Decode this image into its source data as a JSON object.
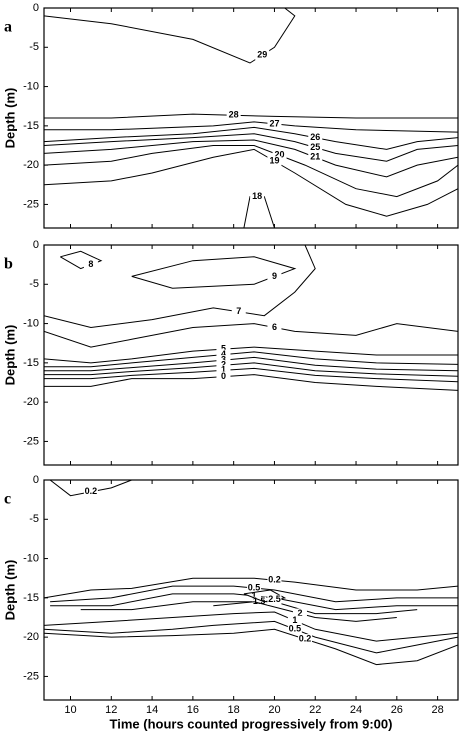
{
  "chart_data": [
    {
      "type": "contour",
      "panel_label": "a",
      "ylabel": "Depth (m)",
      "xlim": [
        8.7,
        29.0
      ],
      "ylim": [
        -28,
        0
      ],
      "xticks": [
        10,
        12,
        14,
        16,
        18,
        20,
        22,
        24,
        26,
        28
      ],
      "yticks": [
        0,
        -5,
        -10,
        -15,
        -20,
        -25
      ],
      "contours": [
        {
          "level": 29,
          "x": [
            8.7,
            12,
            16,
            18.8,
            20,
            21,
            20.5
          ],
          "y": [
            -1,
            -2,
            -4,
            -7,
            -5,
            -1,
            0
          ]
        },
        {
          "level": 28,
          "x": [
            8.7,
            12,
            16,
            20,
            24,
            29
          ],
          "y": [
            -14,
            -14,
            -13.5,
            -13.8,
            -14,
            -14
          ]
        },
        {
          "level": 27,
          "x": [
            8.7,
            12,
            17,
            19,
            21,
            24,
            29
          ],
          "y": [
            -15.5,
            -15.5,
            -15,
            -14.5,
            -15,
            -15.5,
            -15.8
          ]
        },
        {
          "level": 26,
          "x": [
            8.7,
            12,
            16,
            19,
            21,
            23,
            25.5,
            27,
            29
          ],
          "y": [
            -17,
            -16.5,
            -16,
            -15.2,
            -16,
            -17,
            -18,
            -17,
            -16.5
          ]
        },
        {
          "level": 25,
          "x": [
            8.7,
            12,
            16,
            19,
            21,
            23,
            25.5,
            27,
            29
          ],
          "y": [
            -17.5,
            -17,
            -16.5,
            -16,
            -17,
            -18.5,
            -19.5,
            -18,
            -17.5
          ]
        },
        {
          "level": 21,
          "x": [
            8.7,
            12,
            16,
            19,
            21,
            23,
            25.5,
            27,
            29
          ],
          "y": [
            -18.5,
            -18,
            -17,
            -16.8,
            -18,
            -20,
            -21.5,
            -20,
            -19
          ]
        },
        {
          "level": 20,
          "x": [
            8.7,
            12,
            14,
            17,
            19,
            21.5,
            24,
            26,
            28,
            29
          ],
          "y": [
            -20,
            -19.5,
            -18.5,
            -17.5,
            -17.5,
            -20,
            -23,
            -24,
            -22,
            -20
          ]
        },
        {
          "level": 19,
          "x": [
            8.7,
            12,
            14,
            17,
            19,
            21,
            23.5,
            25.5,
            27.5,
            29
          ],
          "y": [
            -22.5,
            -22,
            -21,
            -19,
            -18,
            -21,
            -25,
            -26.5,
            -25,
            -23
          ]
        },
        {
          "level": 18,
          "x": [
            18.5,
            18.8,
            19.5,
            20
          ],
          "y": [
            -28,
            -24,
            -24,
            -28
          ]
        }
      ]
    },
    {
      "type": "contour",
      "panel_label": "b",
      "ylabel": "Depth (m)",
      "xlim": [
        8.7,
        29.0
      ],
      "ylim": [
        -28,
        0
      ],
      "xticks": [
        10,
        12,
        14,
        16,
        18,
        20,
        22,
        24,
        26,
        28
      ],
      "yticks": [
        0,
        -5,
        -10,
        -15,
        -20,
        -25
      ],
      "contours": [
        {
          "level": 8,
          "x": [
            9.5,
            10.5,
            11.5,
            10.5,
            9.5
          ],
          "y": [
            -1.5,
            -0.8,
            -2,
            -3,
            -1.5
          ]
        },
        {
          "level": 9,
          "x": [
            13,
            16,
            19,
            21,
            19,
            15,
            13
          ],
          "y": [
            -4,
            -2,
            -1.5,
            -3,
            -5,
            -5.5,
            -4
          ]
        },
        {
          "level": 7,
          "x": [
            8.7,
            11,
            14,
            17,
            19.5,
            21,
            22,
            21.5
          ],
          "y": [
            -9,
            -10.5,
            -9.5,
            -8,
            -9,
            -6,
            -3,
            0
          ]
        },
        {
          "level": 6,
          "x": [
            8.7,
            11,
            13,
            16,
            19,
            21,
            24,
            26,
            29
          ],
          "y": [
            -11,
            -13,
            -12,
            -10.5,
            -10,
            -11,
            -11.5,
            -10,
            -11
          ]
        },
        {
          "level": 5,
          "x": [
            8.7,
            11,
            13,
            16,
            19,
            22,
            25,
            29
          ],
          "y": [
            -14.5,
            -15,
            -14.5,
            -13.5,
            -13,
            -13.5,
            -14,
            -14
          ]
        },
        {
          "level": 4,
          "x": [
            8.7,
            11,
            13,
            16,
            19,
            22,
            25,
            29
          ],
          "y": [
            -15.5,
            -15.5,
            -15,
            -14.3,
            -13.6,
            -14.5,
            -15,
            -15.2
          ]
        },
        {
          "level": 3,
          "x": [
            8.7,
            11,
            13,
            16,
            19,
            22,
            25,
            29
          ],
          "y": [
            -16,
            -16,
            -15.6,
            -15,
            -14.3,
            -15.3,
            -15.8,
            -16
          ]
        },
        {
          "level": 2,
          "x": [
            8.7,
            11,
            13,
            16,
            19,
            22,
            25,
            29
          ],
          "y": [
            -16.5,
            -16.5,
            -16.1,
            -15.6,
            -15,
            -16,
            -16.4,
            -16.7
          ]
        },
        {
          "level": 1,
          "x": [
            8.7,
            11,
            13,
            16,
            19,
            22,
            25,
            29
          ],
          "y": [
            -17,
            -17,
            -16.6,
            -16.2,
            -15.7,
            -16.6,
            -17,
            -17.4
          ]
        },
        {
          "level": 0,
          "x": [
            8.7,
            11,
            13,
            16,
            19,
            22,
            25,
            29
          ],
          "y": [
            -18,
            -18,
            -17,
            -17,
            -16.5,
            -17.5,
            -18,
            -18.5
          ]
        }
      ]
    },
    {
      "type": "contour",
      "panel_label": "c",
      "ylabel": "Depth (m)",
      "xlabel": "Time (hours counted progressively from 9:00)",
      "xlim": [
        8.7,
        29.0
      ],
      "ylim": [
        -28,
        0
      ],
      "xticks": [
        10,
        12,
        14,
        16,
        18,
        20,
        22,
        24,
        26,
        28
      ],
      "yticks": [
        0,
        -5,
        -10,
        -15,
        -20,
        -25
      ],
      "contours": [
        {
          "level": 0.2,
          "x": [
            9,
            10,
            12,
            13
          ],
          "y": [
            0,
            -2,
            -1,
            0
          ]
        },
        {
          "level": 0.2,
          "x": [
            8.7,
            11,
            13,
            16,
            19,
            21,
            24,
            27,
            29
          ],
          "y": [
            -15,
            -14,
            -13.8,
            -12.5,
            -12.5,
            -13,
            -14,
            -14,
            -13.5
          ]
        },
        {
          "level": 0.5,
          "x": [
            9,
            12,
            15,
            18,
            20,
            23,
            26,
            29
          ],
          "y": [
            -15.5,
            -15,
            -13.5,
            -13.5,
            -14,
            -15.5,
            -15,
            -15
          ]
        },
        {
          "level": 1,
          "x": [
            9,
            12,
            15,
            18,
            20,
            23,
            26,
            29
          ],
          "y": [
            -16,
            -16,
            -14.5,
            -14.5,
            -15,
            -16.5,
            -16,
            -16
          ]
        },
        {
          "level": 1.5,
          "x": [
            10.5,
            13,
            16,
            18.5,
            20,
            22,
            25,
            27
          ],
          "y": [
            -16.5,
            -16.5,
            -15.5,
            -15.5,
            -15.5,
            -17,
            -17,
            -16.5
          ]
        },
        {
          "level": 2,
          "x": [
            17,
            19,
            20.5,
            22,
            24,
            26
          ],
          "y": [
            -16,
            -15.5,
            -16.5,
            -17.5,
            -18,
            -17.5
          ]
        },
        {
          "level": 2.5,
          "x": [
            18.5,
            19.8,
            20.5,
            19.5,
            18.5
          ],
          "y": [
            -14.5,
            -14,
            -15,
            -15.5,
            -14.5
          ]
        },
        {
          "level": 1,
          "x": [
            8.7,
            12,
            15,
            18,
            20,
            22,
            25,
            27,
            29
          ],
          "y": [
            -18.5,
            -18,
            -17.5,
            -17,
            -16.8,
            -19,
            -20.5,
            -20,
            -19.5
          ]
        },
        {
          "level": 0.5,
          "x": [
            8.7,
            12,
            15,
            17,
            20,
            22,
            25,
            27,
            29
          ],
          "y": [
            -19,
            -19.5,
            -19,
            -18.5,
            -18,
            -20,
            -22,
            -21,
            -20
          ]
        },
        {
          "level": 0.2,
          "x": [
            8.7,
            12,
            15,
            18,
            20,
            23,
            25,
            27,
            29
          ],
          "y": [
            -19.5,
            -20,
            -19.8,
            -19.5,
            -19,
            -21.5,
            -23.5,
            -23,
            -21
          ]
        }
      ]
    }
  ]
}
